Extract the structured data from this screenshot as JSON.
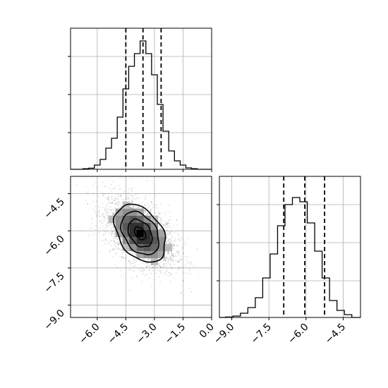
{
  "chart_data": [
    {
      "type": "histogram",
      "panel": "x-marginal",
      "x": [
        -6.6,
        -6.3,
        -6.0,
        -5.7,
        -5.4,
        -5.1,
        -4.8,
        -4.5,
        -4.2,
        -3.9,
        -3.6,
        -3.3,
        -3.0,
        -2.7,
        -2.4,
        -2.1,
        -1.8,
        -1.5,
        -1.2,
        -0.9
      ],
      "counts": [
        0.004,
        0.008,
        0.03,
        0.07,
        0.15,
        0.22,
        0.37,
        0.57,
        0.73,
        0.82,
        0.91,
        0.82,
        0.67,
        0.46,
        0.27,
        0.13,
        0.06,
        0.03,
        0.01,
        0.004
      ],
      "xlim": [
        -7.4,
        0.0
      ],
      "ylim": [
        0,
        1
      ],
      "quantiles": [
        -4.5,
        -3.6,
        -2.65
      ],
      "grid": true
    },
    {
      "type": "scatter-density",
      "panel": "joint",
      "x_tick_labels": [
        "−6.0",
        "−4.5",
        "−3.0",
        "−1.5",
        "0.0"
      ],
      "x_ticks": [
        -6.0,
        -4.5,
        -3.0,
        -1.5,
        0.0
      ],
      "y_tick_labels": [
        "−4.5",
        "−6.0",
        "−7.5",
        "−9.0"
      ],
      "y_ticks": [
        -4.5,
        -6.0,
        -7.5,
        -9.0
      ],
      "xlim": [
        -7.4,
        0.0
      ],
      "ylim": [
        -9.5,
        -3.8
      ],
      "center": [
        -3.75,
        -6.1
      ],
      "contours": [
        {
          "rx": 0.55,
          "ry": 0.35,
          "angle": -40
        },
        {
          "rx": 1.15,
          "ry": 0.8,
          "angle": -40
        },
        {
          "rx": 1.8,
          "ry": 1.25,
          "angle": -40
        },
        {
          "rx": 2.45,
          "ry": 1.65,
          "angle": -40
        }
      ],
      "grid": true
    },
    {
      "type": "histogram",
      "panel": "y-marginal",
      "x_tick_labels": [
        "−9.0",
        "−7.5",
        "−6.0",
        "−4.5"
      ],
      "x_ticks": [
        -9.0,
        -7.5,
        -6.0,
        -4.5
      ],
      "x": [
        -9.1,
        -8.8,
        -8.5,
        -8.2,
        -7.9,
        -7.6,
        -7.3,
        -7.0,
        -6.7,
        -6.4,
        -6.1,
        -5.8,
        -5.5,
        -5.2,
        -4.9,
        -4.6,
        -4.3
      ],
      "counts": [
        0.003,
        0.01,
        0.03,
        0.07,
        0.14,
        0.28,
        0.45,
        0.65,
        0.8,
        0.85,
        0.82,
        0.67,
        0.47,
        0.28,
        0.12,
        0.05,
        0.02
      ],
      "xlim": [
        -9.5,
        -3.8
      ],
      "ylim": [
        0,
        1
      ],
      "quantiles": [
        -6.9,
        -6.05,
        -5.25
      ],
      "grid": true
    }
  ]
}
